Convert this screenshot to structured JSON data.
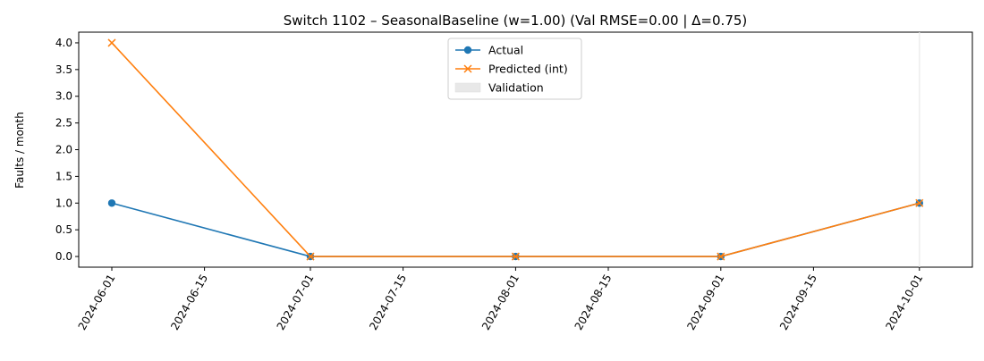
{
  "chart_data": {
    "type": "line",
    "title": "Switch 1102 – SeasonalBaseline (w=1.00) (Val RMSE=0.00 | Δ=0.75)",
    "xlabel": "",
    "ylabel": "Faults / month",
    "xlim": [
      "2024-05-27",
      "2024-10-09"
    ],
    "ylim": [
      -0.2,
      4.2
    ],
    "x_ticks": [
      "2024-06-01",
      "2024-06-15",
      "2024-07-01",
      "2024-07-15",
      "2024-08-01",
      "2024-08-15",
      "2024-09-01",
      "2024-09-15",
      "2024-10-01"
    ],
    "y_ticks": [
      0.0,
      0.5,
      1.0,
      1.5,
      2.0,
      2.5,
      3.0,
      3.5,
      4.0
    ],
    "y_tick_labels": [
      "0.0",
      "0.5",
      "1.0",
      "1.5",
      "2.0",
      "2.5",
      "3.0",
      "3.5",
      "4.0"
    ],
    "x": [
      "2024-06-01",
      "2024-07-01",
      "2024-08-01",
      "2024-09-01",
      "2024-10-01"
    ],
    "series": [
      {
        "name": "Actual",
        "values": [
          1,
          0,
          0,
          0,
          1
        ],
        "color": "#1f77b4",
        "marker": "circle"
      },
      {
        "name": "Predicted (int)",
        "values": [
          4,
          0,
          0,
          0,
          1
        ],
        "color": "#ff7f0e",
        "marker": "x"
      }
    ],
    "validation": {
      "label": "Validation",
      "start": "2024-10-01",
      "end": "2024-10-01",
      "color": "#e8e8e8"
    },
    "legend_position": "upper-center",
    "grid": false
  }
}
